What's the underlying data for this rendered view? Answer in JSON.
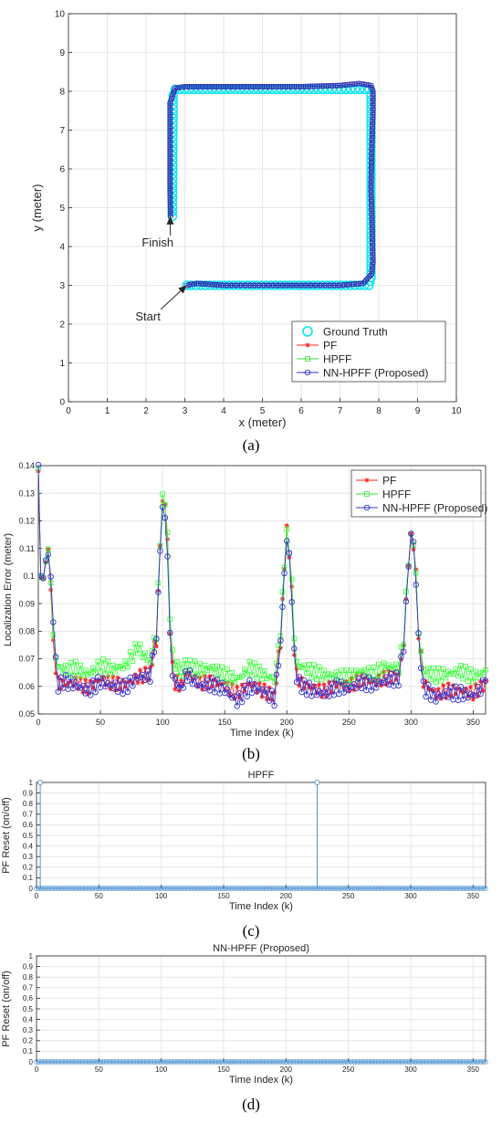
{
  "captions": [
    "(a)",
    "(b)",
    "(c)",
    "(d)"
  ],
  "chart_data": [
    {
      "type": "line",
      "title": "",
      "xlabel": "x (meter)",
      "ylabel": "y (meter)",
      "xlim": [
        0,
        10
      ],
      "ylim": [
        0,
        10
      ],
      "xticks": [
        0,
        1,
        2,
        3,
        4,
        5,
        6,
        7,
        8,
        9,
        10
      ],
      "yticks": [
        0,
        1,
        2,
        3,
        4,
        5,
        6,
        7,
        8,
        9,
        10
      ],
      "grid": true,
      "legend_position": "bottom-right",
      "legend": [
        "Ground Truth",
        "PF",
        "HPFF",
        "NN-HPFF (Proposed)"
      ],
      "annotations": [
        {
          "text": "Finish",
          "x": 2.3,
          "y": 4.0,
          "ax": 2.62,
          "ay": 4.78
        },
        {
          "text": "Start",
          "x": 2.05,
          "y": 2.1,
          "ax": 3.05,
          "ay": 3.0
        }
      ],
      "series": [
        {
          "name": "Ground Truth",
          "color": "#00e5ee",
          "x": [
            3.05,
            7.75,
            7.8,
            7.8,
            7.75,
            2.75,
            2.7,
            2.68
          ],
          "y": [
            3.0,
            3.0,
            3.2,
            7.9,
            8.05,
            8.05,
            7.9,
            4.78
          ]
        },
        {
          "name": "NN-HPFF (Proposed)",
          "color": "#2b2bb0",
          "x": [
            3.05,
            3.3,
            4.0,
            5.0,
            6.0,
            7.0,
            7.6,
            7.82,
            7.85,
            7.83,
            7.8,
            7.82,
            7.85,
            7.85,
            7.8,
            7.5,
            7.0,
            6.0,
            5.0,
            4.0,
            3.0,
            2.75,
            2.62,
            2.62,
            2.62,
            2.63
          ],
          "y": [
            3.0,
            3.05,
            3.0,
            3.0,
            3.0,
            3.0,
            3.05,
            3.3,
            3.6,
            4.5,
            5.5,
            6.5,
            7.45,
            8.0,
            8.15,
            8.2,
            8.15,
            8.12,
            8.12,
            8.12,
            8.12,
            8.08,
            7.7,
            6.5,
            5.5,
            4.78
          ]
        }
      ]
    },
    {
      "type": "line",
      "title": "",
      "xlabel": "Time Index (k)",
      "ylabel": "Localization Error (meter)",
      "xlim": [
        0,
        360
      ],
      "ylim": [
        0.05,
        0.14
      ],
      "xticks": [
        0,
        50,
        100,
        150,
        200,
        250,
        300,
        350
      ],
      "yticks": [
        0.05,
        0.06,
        0.07,
        0.08,
        0.09,
        0.1,
        0.11,
        0.12,
        0.13,
        0.14
      ],
      "grid": true,
      "legend_position": "top-right",
      "legend": [
        "PF",
        "HPFF",
        "NN-HPFF (Proposed)"
      ],
      "series": [
        {
          "name": "PF",
          "color": "#ff2020",
          "x": [
            0,
            2,
            4,
            6,
            8,
            10,
            12,
            14,
            16,
            20,
            30,
            40,
            50,
            60,
            70,
            80,
            90,
            95,
            98,
            100,
            102,
            104,
            106,
            108,
            110,
            115,
            120,
            130,
            140,
            150,
            160,
            170,
            180,
            190,
            195,
            198,
            200,
            202,
            204,
            206,
            208,
            212,
            220,
            230,
            240,
            250,
            260,
            270,
            280,
            290,
            294,
            298,
            300,
            302,
            304,
            306,
            310,
            320,
            330,
            340,
            350,
            360
          ],
          "y": [
            0.138,
            0.1,
            0.098,
            0.107,
            0.108,
            0.098,
            0.075,
            0.068,
            0.062,
            0.062,
            0.063,
            0.061,
            0.064,
            0.062,
            0.061,
            0.063,
            0.064,
            0.078,
            0.11,
            0.125,
            0.126,
            0.11,
            0.08,
            0.065,
            0.06,
            0.062,
            0.063,
            0.06,
            0.061,
            0.06,
            0.058,
            0.062,
            0.06,
            0.058,
            0.075,
            0.105,
            0.118,
            0.11,
            0.095,
            0.075,
            0.065,
            0.062,
            0.06,
            0.058,
            0.06,
            0.059,
            0.061,
            0.06,
            0.062,
            0.063,
            0.075,
            0.105,
            0.113,
            0.112,
            0.1,
            0.08,
            0.062,
            0.058,
            0.06,
            0.06,
            0.059,
            0.062
          ]
        },
        {
          "name": "HPFF",
          "color": "#33ff33",
          "x": [
            0,
            2,
            4,
            6,
            8,
            10,
            12,
            14,
            16,
            20,
            30,
            40,
            50,
            60,
            70,
            80,
            90,
            95,
            98,
            100,
            102,
            104,
            106,
            108,
            110,
            115,
            120,
            130,
            140,
            150,
            160,
            170,
            180,
            190,
            195,
            198,
            200,
            202,
            204,
            206,
            208,
            212,
            220,
            230,
            240,
            250,
            260,
            270,
            280,
            290,
            294,
            298,
            300,
            302,
            304,
            306,
            310,
            320,
            330,
            340,
            350,
            360
          ],
          "y": [
            0.137,
            0.102,
            0.097,
            0.108,
            0.108,
            0.1,
            0.078,
            0.072,
            0.068,
            0.067,
            0.068,
            0.066,
            0.069,
            0.067,
            0.068,
            0.074,
            0.068,
            0.08,
            0.112,
            0.126,
            0.127,
            0.112,
            0.085,
            0.07,
            0.066,
            0.067,
            0.066,
            0.065,
            0.066,
            0.064,
            0.063,
            0.068,
            0.066,
            0.064,
            0.078,
            0.107,
            0.116,
            0.112,
            0.098,
            0.08,
            0.069,
            0.068,
            0.066,
            0.064,
            0.063,
            0.062,
            0.064,
            0.063,
            0.066,
            0.066,
            0.077,
            0.106,
            0.113,
            0.113,
            0.1,
            0.08,
            0.066,
            0.065,
            0.066,
            0.067,
            0.065,
            0.066
          ]
        },
        {
          "name": "NN-HPFF (Proposed)",
          "color": "#3333cc",
          "x": [
            0,
            2,
            4,
            6,
            8,
            10,
            12,
            14,
            16,
            20,
            30,
            40,
            50,
            60,
            70,
            80,
            90,
            95,
            98,
            100,
            102,
            104,
            106,
            108,
            110,
            115,
            120,
            130,
            140,
            150,
            160,
            170,
            180,
            190,
            195,
            198,
            200,
            202,
            204,
            206,
            208,
            212,
            220,
            230,
            240,
            250,
            260,
            270,
            280,
            290,
            294,
            298,
            300,
            302,
            304,
            306,
            310,
            320,
            330,
            340,
            350,
            360
          ],
          "y": [
            0.138,
            0.102,
            0.098,
            0.107,
            0.108,
            0.1,
            0.085,
            0.07,
            0.061,
            0.063,
            0.062,
            0.06,
            0.063,
            0.061,
            0.06,
            0.063,
            0.063,
            0.078,
            0.11,
            0.122,
            0.121,
            0.105,
            0.078,
            0.063,
            0.06,
            0.061,
            0.063,
            0.059,
            0.06,
            0.059,
            0.055,
            0.061,
            0.06,
            0.057,
            0.074,
            0.104,
            0.113,
            0.11,
            0.092,
            0.074,
            0.064,
            0.061,
            0.059,
            0.057,
            0.059,
            0.058,
            0.06,
            0.059,
            0.061,
            0.062,
            0.074,
            0.104,
            0.115,
            0.112,
            0.098,
            0.078,
            0.06,
            0.057,
            0.059,
            0.059,
            0.058,
            0.062
          ]
        }
      ]
    },
    {
      "type": "scatter",
      "title": "HPFF",
      "xlabel": "Time Index (k)",
      "ylabel": "PF Reset (on/off)",
      "xlim": [
        0,
        360
      ],
      "ylim": [
        0,
        1
      ],
      "xticks": [
        0,
        50,
        100,
        150,
        200,
        250,
        300,
        350
      ],
      "yticks": [
        0,
        0.1,
        0.2,
        0.3,
        0.4,
        0.5,
        0.6,
        0.7,
        0.8,
        0.9,
        1
      ],
      "grid": true,
      "stem": true,
      "color": "#4d94d1",
      "num_samples": 360,
      "reset_indices": [
        3,
        225
      ],
      "reset_value": 1
    },
    {
      "type": "scatter",
      "title": "NN-HPFF (Proposed)",
      "xlabel": "Time Index (k)",
      "ylabel": "PF Reset (on/off)",
      "xlim": [
        0,
        360
      ],
      "ylim": [
        0,
        1
      ],
      "xticks": [
        0,
        50,
        100,
        150,
        200,
        250,
        300,
        350
      ],
      "yticks": [
        0,
        0.1,
        0.2,
        0.3,
        0.4,
        0.5,
        0.6,
        0.7,
        0.8,
        0.9,
        1
      ],
      "grid": true,
      "stem": true,
      "color": "#4d94d1",
      "num_samples": 360,
      "reset_indices": [],
      "reset_value": 1
    }
  ]
}
